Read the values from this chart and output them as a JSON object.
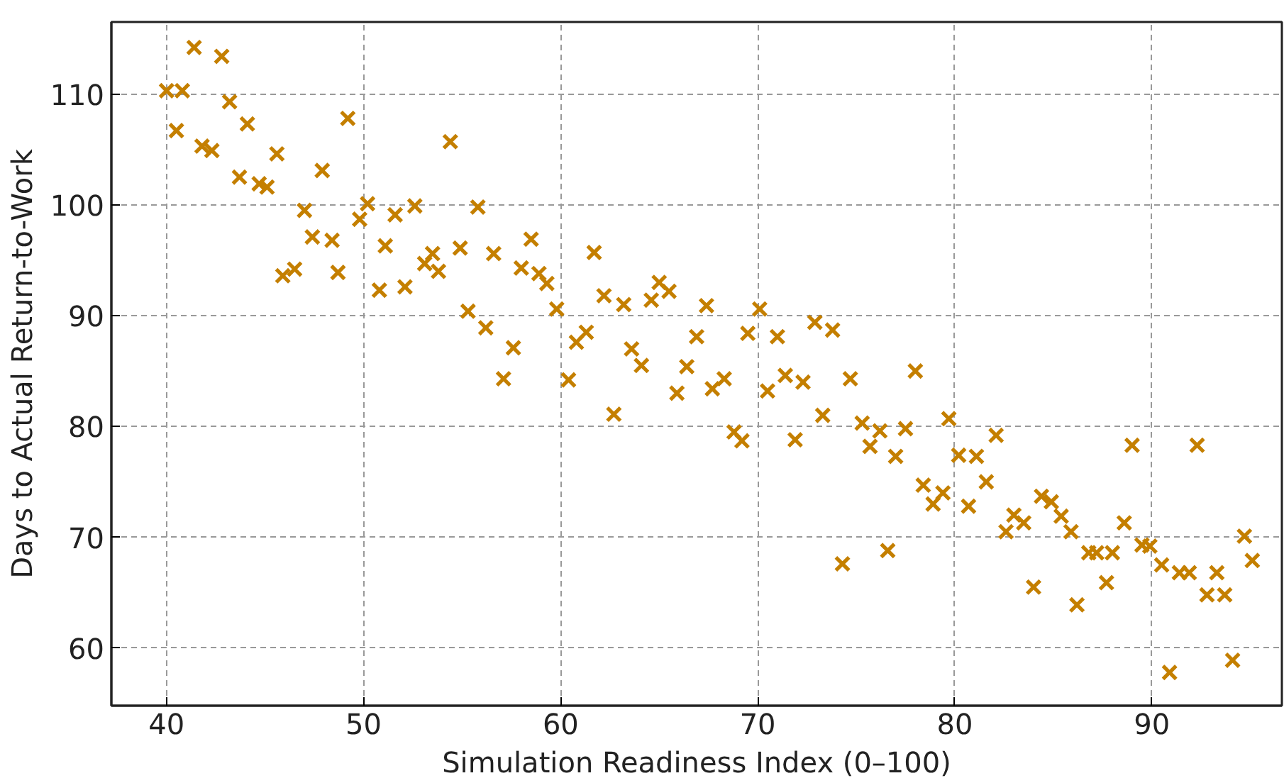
{
  "chart_data": {
    "type": "scatter",
    "xlabel": "Simulation Readiness Index (0–100)",
    "ylabel": "Days to Actual Return-to-Work",
    "xlim": [
      37.2,
      96.6
    ],
    "ylim": [
      54.8,
      116.5
    ],
    "xticks": [
      40,
      50,
      60,
      70,
      80,
      90
    ],
    "yticks": [
      60,
      70,
      80,
      90,
      100,
      110
    ],
    "grid": true,
    "marker": "cross",
    "series": [
      {
        "color": "#c47f00",
        "x": [
          40.0,
          40.8,
          41.4,
          42.8,
          40.5,
          41.8,
          42.3,
          43.2,
          44.1,
          43.7,
          44.7,
          45.1,
          45.6,
          47.0,
          45.9,
          46.5,
          47.4,
          47.9,
          48.4,
          48.7,
          49.2,
          49.8,
          50.2,
          50.8,
          51.1,
          51.6,
          52.1,
          52.6,
          53.1,
          53.5,
          53.8,
          54.4,
          54.9,
          55.3,
          55.8,
          56.2,
          56.6,
          57.1,
          57.6,
          58.0,
          58.5,
          58.9,
          59.3,
          59.8,
          60.4,
          60.8,
          61.3,
          61.7,
          62.2,
          62.7,
          63.2,
          63.6,
          64.1,
          64.6,
          65.0,
          65.5,
          65.9,
          66.4,
          66.9,
          67.4,
          67.7,
          68.3,
          68.8,
          69.2,
          69.5,
          70.1,
          70.5,
          71.0,
          71.4,
          71.9,
          72.3,
          72.9,
          73.3,
          73.8,
          74.3,
          74.7,
          75.3,
          75.7,
          76.2,
          76.6,
          77.0,
          77.5,
          78.0,
          78.4,
          78.9,
          79.4,
          79.7,
          80.2,
          80.7,
          81.1,
          81.6,
          82.1,
          82.6,
          83.0,
          83.5,
          84.0,
          84.4,
          84.9,
          85.4,
          85.9,
          86.2,
          86.8,
          87.2,
          87.7,
          88.0,
          88.6,
          89.0,
          89.5,
          89.9,
          90.5,
          90.9,
          91.4,
          91.9,
          92.3,
          92.8,
          93.3,
          93.7,
          94.1,
          94.7,
          95.1
        ],
        "values": [
          110.3,
          110.3,
          114.2,
          113.4,
          106.7,
          105.3,
          104.9,
          109.3,
          107.3,
          102.5,
          101.9,
          101.6,
          104.6,
          99.5,
          93.6,
          94.2,
          97.1,
          103.1,
          96.8,
          93.9,
          107.8,
          98.7,
          100.1,
          92.3,
          96.3,
          99.1,
          92.6,
          99.9,
          94.7,
          95.6,
          94.0,
          105.7,
          96.1,
          90.4,
          99.8,
          88.9,
          95.6,
          84.3,
          87.1,
          94.3,
          96.9,
          93.8,
          92.9,
          90.6,
          84.2,
          87.6,
          88.5,
          95.7,
          91.8,
          81.1,
          91.0,
          87.0,
          85.5,
          91.4,
          93.0,
          92.2,
          83.0,
          85.4,
          88.1,
          90.9,
          83.4,
          84.3,
          79.5,
          78.7,
          88.4,
          90.6,
          83.2,
          88.1,
          84.6,
          78.8,
          84.0,
          89.4,
          81.0,
          88.7,
          67.6,
          84.3,
          80.3,
          78.2,
          79.6,
          68.8,
          77.3,
          79.8,
          85.0,
          74.7,
          73.0,
          74.0,
          80.7,
          77.4,
          72.8,
          77.3,
          75.0,
          79.2,
          70.5,
          72.0,
          71.3,
          65.5,
          73.7,
          73.2,
          71.9,
          70.5,
          63.9,
          68.6,
          68.6,
          65.9,
          68.6,
          71.3,
          78.3,
          69.3,
          69.2,
          67.5,
          57.8,
          66.8,
          66.8,
          78.3,
          64.8,
          66.8,
          64.8,
          58.9,
          70.1,
          67.9
        ]
      }
    ]
  }
}
